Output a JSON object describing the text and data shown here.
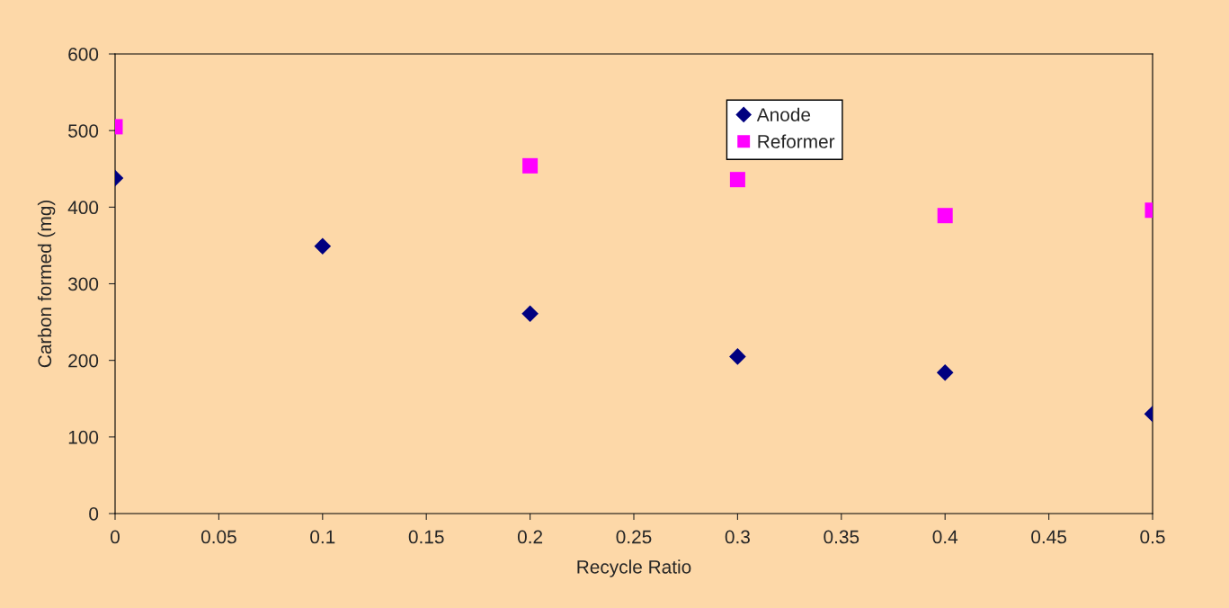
{
  "chart_data": {
    "type": "scatter",
    "xlabel": "Recycle Ratio",
    "ylabel": "Carbon formed (mg)",
    "x": [
      0,
      0.1,
      0.2,
      0.3,
      0.4,
      0.5
    ],
    "series": [
      {
        "name": "Anode",
        "color": "#000080",
        "marker": "diamond",
        "values": [
          438,
          349,
          261,
          205,
          184,
          130
        ]
      },
      {
        "name": "Reformer",
        "color": "#ff00ff",
        "marker": "square",
        "x": [
          0,
          0.2,
          0.3,
          0.4,
          0.5
        ],
        "values": [
          505,
          454,
          436,
          389,
          396
        ]
      }
    ],
    "xlim": [
      0,
      0.5
    ],
    "xticks": [
      0,
      0.05,
      0.1,
      0.15,
      0.2,
      0.25,
      0.3,
      0.35,
      0.4,
      0.45,
      0.5
    ],
    "ylim": [
      0,
      600
    ],
    "yticks": [
      0,
      100,
      200,
      300,
      400,
      500,
      600
    ],
    "grid": false,
    "legend": "top right"
  }
}
